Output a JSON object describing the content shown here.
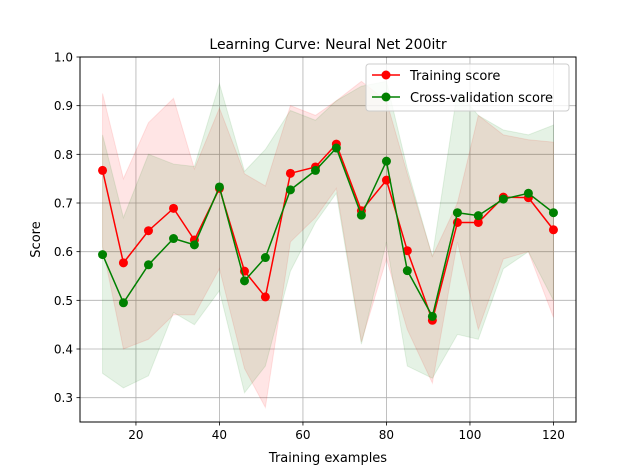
{
  "chart_data": {
    "type": "line",
    "title": "Learning Curve: Neural Net 200itr",
    "xlabel": "Training examples",
    "ylabel": "Score",
    "xlim": [
      6.6,
      125.4
    ],
    "ylim": [
      0.25,
      1.0
    ],
    "xticks": [
      20,
      40,
      60,
      80,
      100,
      120
    ],
    "yticks": [
      0.3,
      0.4,
      0.5,
      0.6,
      0.7,
      0.8,
      0.9,
      1.0
    ],
    "xtick_labels": [
      "20",
      "40",
      "60",
      "80",
      "100",
      "120"
    ],
    "ytick_labels": [
      "0.3",
      "0.4",
      "0.5",
      "0.6",
      "0.7",
      "0.8",
      "0.9",
      "1.0"
    ],
    "grid": true,
    "legend_position": "top-right",
    "x": [
      12,
      17,
      23,
      29,
      34,
      40,
      46,
      51,
      57,
      63,
      68,
      74,
      80,
      85,
      91,
      97,
      102,
      108,
      114,
      120
    ],
    "series": [
      {
        "name": "Training score",
        "color": "#ff0000",
        "band_color": "#ff0000",
        "values": [
          0.767,
          0.577,
          0.643,
          0.689,
          0.624,
          0.73,
          0.56,
          0.507,
          0.761,
          0.774,
          0.821,
          0.684,
          0.747,
          0.602,
          0.459,
          0.66,
          0.66,
          0.712,
          0.711,
          0.645
        ],
        "upper": [
          0.925,
          0.75,
          0.865,
          0.915,
          0.77,
          0.895,
          0.76,
          0.735,
          0.9,
          0.88,
          0.91,
          0.95,
          0.91,
          0.76,
          0.59,
          0.7,
          0.88,
          0.84,
          0.83,
          0.825
        ],
        "lower": [
          0.61,
          0.4,
          0.42,
          0.47,
          0.47,
          0.565,
          0.36,
          0.28,
          0.62,
          0.67,
          0.73,
          0.415,
          0.585,
          0.44,
          0.33,
          0.62,
          0.44,
          0.585,
          0.6,
          0.465
        ]
      },
      {
        "name": "Cross-validation score",
        "color": "#008000",
        "band_color": "#008000",
        "values": [
          0.594,
          0.495,
          0.573,
          0.627,
          0.614,
          0.733,
          0.54,
          0.588,
          0.727,
          0.767,
          0.813,
          0.675,
          0.786,
          0.561,
          0.467,
          0.68,
          0.674,
          0.708,
          0.72,
          0.68
        ],
        "upper": [
          0.84,
          0.67,
          0.8,
          0.78,
          0.775,
          0.945,
          0.765,
          0.81,
          0.89,
          0.87,
          0.91,
          0.94,
          0.95,
          0.77,
          0.59,
          0.93,
          0.88,
          0.85,
          0.84,
          0.86
        ],
        "lower": [
          0.35,
          0.32,
          0.345,
          0.475,
          0.45,
          0.52,
          0.31,
          0.365,
          0.56,
          0.66,
          0.72,
          0.41,
          0.62,
          0.365,
          0.34,
          0.43,
          0.42,
          0.565,
          0.6,
          0.5
        ]
      }
    ]
  }
}
